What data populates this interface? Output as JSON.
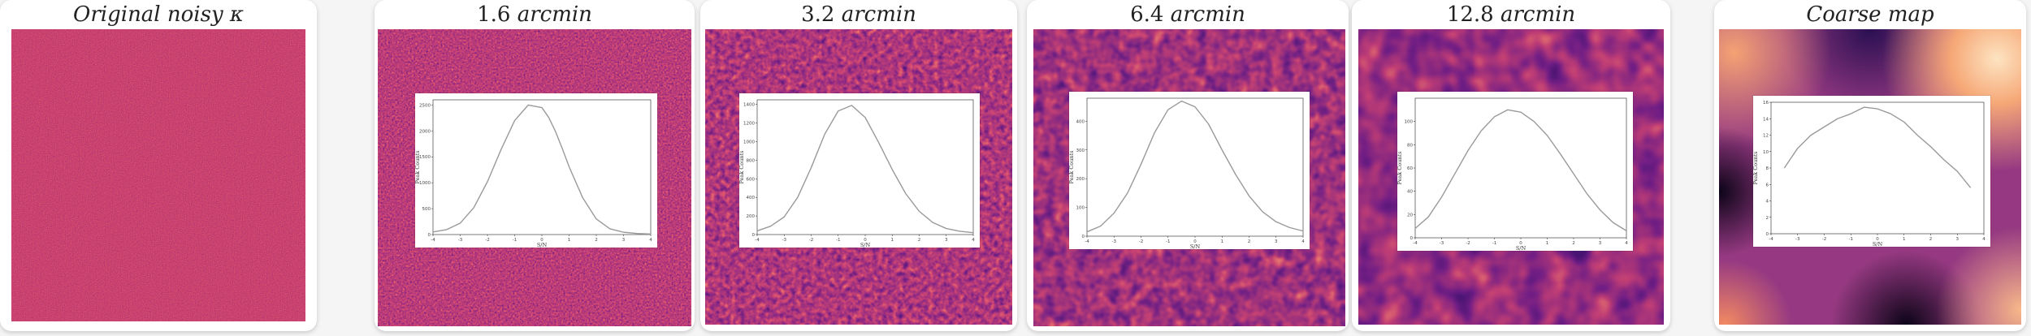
{
  "colors": {
    "card_bg": "#ffffff",
    "page_bg": "#f5f5f5",
    "curve": "#9a9a9a",
    "magma_dark": "#1a0b2e",
    "magma_purple": "#5b2a86",
    "magma_magenta": "#b8357a",
    "magma_orange": "#ee8b5a",
    "magma_light": "#fde4c2"
  },
  "panels": [
    {
      "id": "original",
      "title": {
        "num": "",
        "unit": "Original noisy κ"
      },
      "texture": "noise-fine",
      "has_inset": false
    },
    {
      "id": "s16",
      "title": {
        "num": "1.6",
        "unit": "arcmin"
      },
      "texture": "noise-1.6",
      "has_inset": true
    },
    {
      "id": "s32",
      "title": {
        "num": "3.2",
        "unit": "arcmin"
      },
      "texture": "noise-3.2",
      "has_inset": true
    },
    {
      "id": "s64",
      "title": {
        "num": "6.4",
        "unit": "arcmin"
      },
      "texture": "noise-6.4",
      "has_inset": true
    },
    {
      "id": "s128",
      "title": {
        "num": "12.8",
        "unit": "arcmin"
      },
      "texture": "noise-12.8",
      "has_inset": true
    },
    {
      "id": "coarse",
      "title": {
        "num": "",
        "unit": "Coarse map"
      },
      "texture": "coarse-blobs",
      "has_inset": true
    }
  ],
  "chart_data": [
    {
      "type": "line",
      "panel": "1.6 arcmin",
      "xlabel": "S/N",
      "ylabel": "Peak Counts",
      "xlim": [
        -4,
        4
      ],
      "ylim": [
        0,
        2600
      ],
      "xticks": [
        -4,
        -3,
        -2,
        -1,
        0,
        1,
        2,
        3,
        4
      ],
      "yticks": [
        0,
        500,
        1000,
        1500,
        2000,
        2500
      ],
      "x": [
        -4.0,
        -3.5,
        -3.0,
        -2.5,
        -2.0,
        -1.5,
        -1.0,
        -0.5,
        0.0,
        0.25,
        0.5,
        0.75,
        1.0,
        1.5,
        2.0,
        2.5,
        3.0,
        3.5,
        4.0
      ],
      "y": [
        50,
        95,
        220,
        520,
        1020,
        1640,
        2200,
        2500,
        2450,
        2260,
        1990,
        1660,
        1310,
        710,
        300,
        110,
        45,
        20,
        10
      ]
    },
    {
      "type": "line",
      "panel": "3.2 arcmin",
      "xlabel": "S/N",
      "ylabel": "Peak Counts",
      "xlim": [
        -4,
        4
      ],
      "ylim": [
        0,
        1450
      ],
      "xticks": [
        -4,
        -3,
        -2,
        -1,
        0,
        1,
        2,
        3,
        4
      ],
      "yticks": [
        0,
        200,
        400,
        600,
        800,
        1000,
        1200,
        1400
      ],
      "x": [
        -4.0,
        -3.5,
        -3.0,
        -2.5,
        -2.0,
        -1.5,
        -1.0,
        -0.5,
        0.0,
        0.5,
        1.0,
        1.5,
        2.0,
        2.5,
        3.0,
        3.5,
        4.0
      ],
      "y": [
        40,
        90,
        190,
        400,
        720,
        1080,
        1330,
        1390,
        1260,
        990,
        700,
        440,
        250,
        130,
        65,
        35,
        20
      ]
    },
    {
      "type": "line",
      "panel": "6.4 arcmin",
      "xlabel": "S/N",
      "ylabel": "Peak Counts",
      "xlim": [
        -4,
        4
      ],
      "ylim": [
        0,
        480
      ],
      "xticks": [
        -4,
        -3,
        -2,
        -1,
        0,
        1,
        2,
        3,
        4
      ],
      "yticks": [
        0,
        100,
        200,
        300,
        400
      ],
      "x": [
        -4.0,
        -3.5,
        -3.0,
        -2.5,
        -2.0,
        -1.5,
        -1.0,
        -0.5,
        0.0,
        0.5,
        1.0,
        1.5,
        2.0,
        2.5,
        3.0,
        3.5,
        4.0
      ],
      "y": [
        15,
        35,
        80,
        150,
        250,
        360,
        440,
        470,
        450,
        390,
        300,
        215,
        140,
        85,
        50,
        30,
        18
      ]
    },
    {
      "type": "line",
      "panel": "12.8 arcmin",
      "xlabel": "S/N",
      "ylabel": "Peak Counts",
      "xlim": [
        -4,
        4
      ],
      "ylim": [
        0,
        120
      ],
      "xticks": [
        -4,
        -3,
        -2,
        -1,
        0,
        1,
        2,
        3,
        4
      ],
      "yticks": [
        0,
        20,
        40,
        60,
        80,
        100
      ],
      "x": [
        -4.0,
        -3.5,
        -3.0,
        -2.5,
        -2.0,
        -1.5,
        -1.0,
        -0.5,
        0.0,
        0.5,
        1.0,
        1.5,
        2.0,
        2.5,
        3.0,
        3.5,
        4.0
      ],
      "y": [
        8,
        18,
        35,
        55,
        75,
        92,
        104,
        110,
        108,
        100,
        88,
        72,
        55,
        38,
        24,
        13,
        6
      ]
    },
    {
      "type": "line",
      "panel": "Coarse map",
      "xlabel": "S/N",
      "ylabel": "Peak Counts",
      "xlim": [
        -4,
        4
      ],
      "ylim": [
        0,
        16
      ],
      "xticks": [
        -4,
        -3,
        -2,
        -1,
        0,
        1,
        2,
        3,
        4
      ],
      "yticks": [
        0,
        2,
        4,
        6,
        8,
        10,
        12,
        14,
        16
      ],
      "x": [
        -3.5,
        -3.0,
        -2.5,
        -2.0,
        -1.5,
        -1.0,
        -0.5,
        0.0,
        0.5,
        1.0,
        1.5,
        2.0,
        2.5,
        3.0,
        3.5
      ],
      "y": [
        8.0,
        10.4,
        12.0,
        13.0,
        14.0,
        14.6,
        15.4,
        15.2,
        14.6,
        13.6,
        12.0,
        10.6,
        9.0,
        7.6,
        5.6
      ]
    }
  ]
}
